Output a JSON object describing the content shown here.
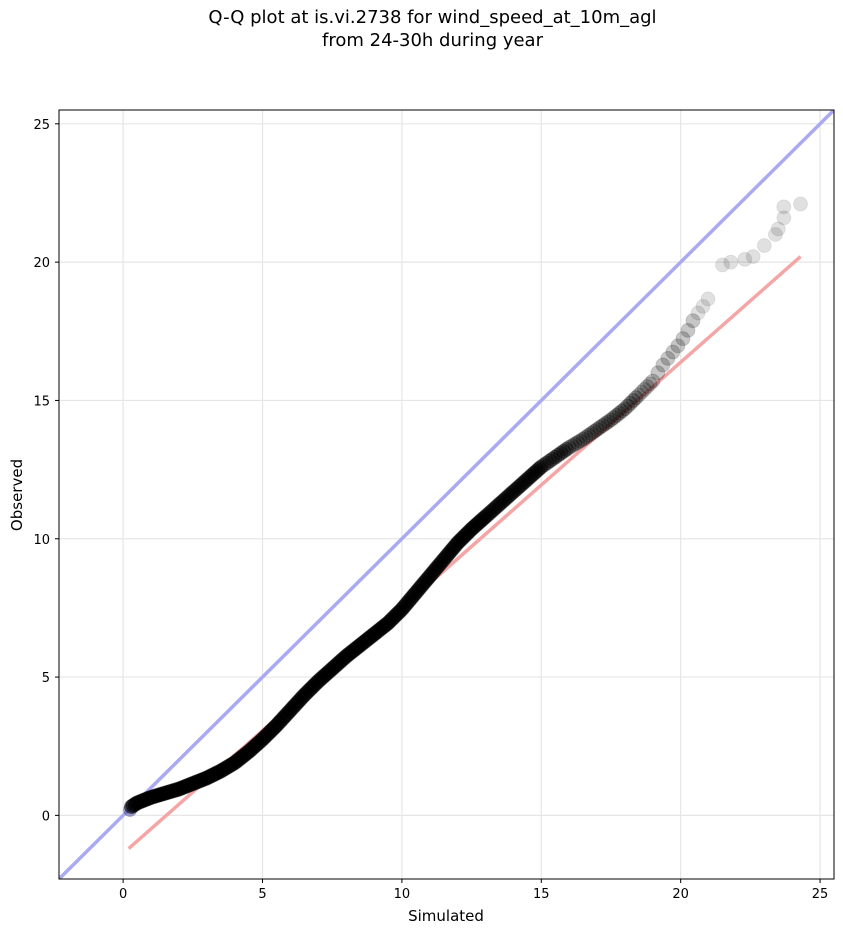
{
  "title_line1": "Q-Q plot at is.vi.2738 for wind_speed_at_10m_agl",
  "title_line2": "from 24-30h during year",
  "chart_data": {
    "type": "scatter",
    "title": "Q-Q plot at is.vi.2738 for wind_speed_at_10m_agl\nfrom 24-30h during year",
    "xlabel": "Simulated",
    "ylabel": "Observed",
    "xlim": [
      -2.3,
      25.5
    ],
    "ylim": [
      -2.3,
      25.5
    ],
    "xticks": [
      0,
      5,
      10,
      15,
      20,
      25
    ],
    "yticks": [
      0,
      5,
      10,
      15,
      20,
      25
    ],
    "grid": true,
    "identity_line": {
      "color": "#aaaaf2",
      "from": [
        -2.3,
        -2.3
      ],
      "to": [
        25.5,
        25.5
      ]
    },
    "fit_line": {
      "color": "#f4a6a6",
      "from": [
        0.2,
        -1.2
      ],
      "to": [
        24.3,
        20.2
      ]
    },
    "quantile_curve": [
      [
        0.2,
        0.25
      ],
      [
        0.5,
        0.45
      ],
      [
        1.0,
        0.65
      ],
      [
        1.5,
        0.8
      ],
      [
        2.0,
        0.95
      ],
      [
        2.5,
        1.15
      ],
      [
        3.0,
        1.35
      ],
      [
        3.5,
        1.6
      ],
      [
        4.0,
        1.9
      ],
      [
        4.5,
        2.3
      ],
      [
        5.0,
        2.75
      ],
      [
        5.5,
        3.25
      ],
      [
        6.0,
        3.8
      ],
      [
        6.5,
        4.35
      ],
      [
        7.0,
        4.85
      ],
      [
        7.5,
        5.3
      ],
      [
        8.0,
        5.75
      ],
      [
        8.5,
        6.15
      ],
      [
        9.0,
        6.55
      ],
      [
        9.5,
        6.95
      ],
      [
        10.0,
        7.45
      ],
      [
        10.5,
        8.05
      ],
      [
        11.0,
        8.65
      ],
      [
        11.5,
        9.25
      ],
      [
        12.0,
        9.85
      ],
      [
        12.5,
        10.35
      ],
      [
        13.0,
        10.8
      ],
      [
        13.5,
        11.25
      ],
      [
        14.0,
        11.7
      ],
      [
        14.5,
        12.15
      ],
      [
        15.0,
        12.6
      ],
      [
        15.5,
        12.95
      ],
      [
        16.0,
        13.3
      ],
      [
        16.5,
        13.6
      ],
      [
        17.0,
        13.95
      ],
      [
        17.5,
        14.3
      ],
      [
        18.0,
        14.7
      ],
      [
        18.5,
        15.2
      ],
      [
        19.0,
        15.7
      ],
      [
        19.3,
        16.2
      ],
      [
        19.6,
        16.6
      ],
      [
        20.0,
        17.1
      ],
      [
        20.3,
        17.6
      ],
      [
        20.5,
        18.0
      ],
      [
        20.8,
        18.4
      ],
      [
        21.2,
        19.0
      ],
      [
        21.6,
        19.3
      ],
      [
        22.0,
        19.5
      ],
      [
        22.5,
        19.9
      ],
      [
        23.0,
        20.4
      ],
      [
        23.3,
        20.8
      ],
      [
        23.6,
        21.5
      ],
      [
        24.3,
        22.1
      ]
    ],
    "tail_points": [
      [
        21.5,
        19.9
      ],
      [
        21.8,
        20.0
      ],
      [
        22.3,
        20.1
      ],
      [
        22.6,
        20.2
      ],
      [
        23.0,
        20.6
      ],
      [
        23.4,
        21.0
      ],
      [
        23.5,
        21.2
      ],
      [
        23.7,
        21.6
      ],
      [
        23.7,
        22.0
      ],
      [
        24.3,
        22.1
      ]
    ]
  }
}
